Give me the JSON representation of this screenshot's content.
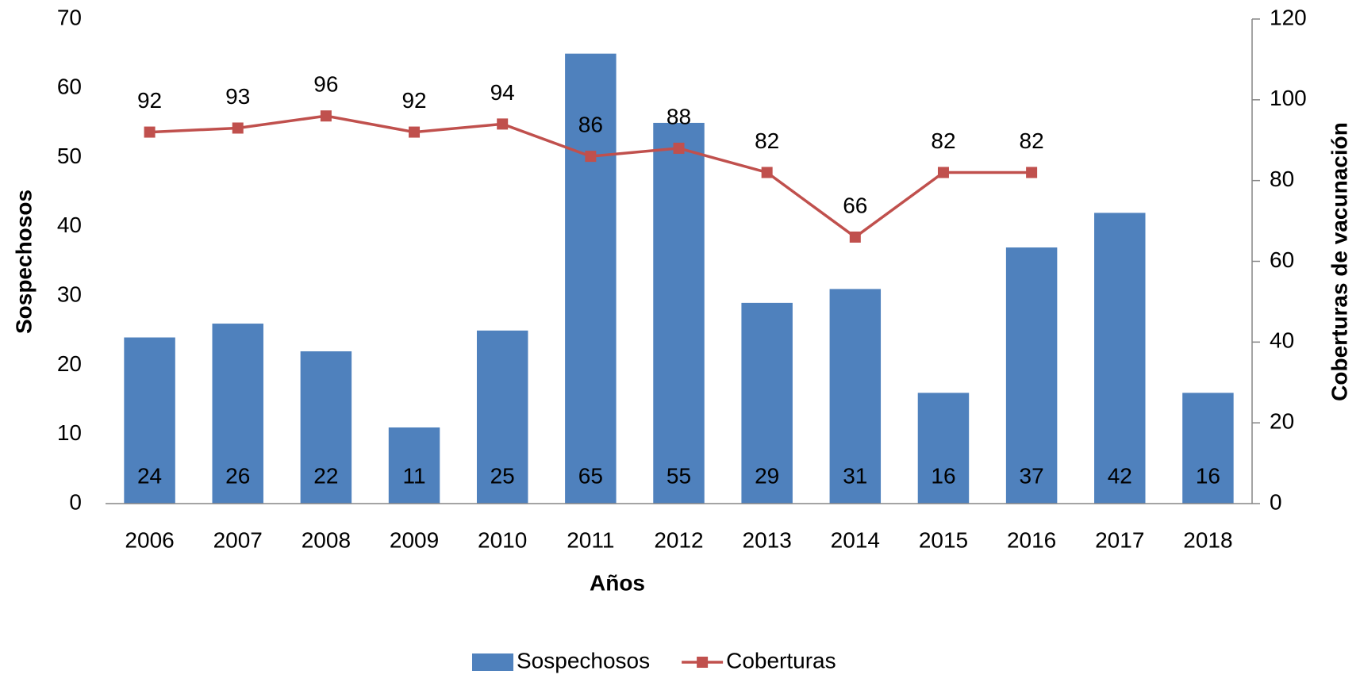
{
  "chart_data": {
    "type": "combo",
    "categories": [
      "2006",
      "2007",
      "2008",
      "2009",
      "2010",
      "2011",
      "2012",
      "2013",
      "2014",
      "2015",
      "2016",
      "2017",
      "2018"
    ],
    "series": [
      {
        "name": "Sospechosos",
        "type": "bar",
        "color": "#4f81bd",
        "values": [
          24,
          26,
          22,
          11,
          25,
          65,
          55,
          29,
          31,
          16,
          37,
          42,
          16
        ]
      },
      {
        "name": "Coberturas",
        "type": "line",
        "axis": "y2",
        "color": "#c0504d",
        "values": [
          92,
          93,
          96,
          92,
          94,
          86,
          88,
          82,
          66,
          82,
          82,
          null,
          null
        ]
      }
    ],
    "ylabel": "Sospechosos",
    "y2label": "Coberturas de vacunación",
    "xlabel": "Años",
    "ylim": [
      0,
      70
    ],
    "yticks": [
      0,
      10,
      20,
      30,
      40,
      50,
      60,
      70
    ],
    "y2lim": [
      0,
      120
    ],
    "y2ticks": [
      0,
      20,
      40,
      60,
      80,
      100,
      120
    ],
    "legend": "bottom"
  }
}
